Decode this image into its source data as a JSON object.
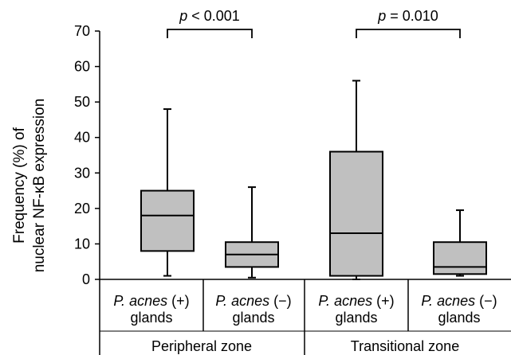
{
  "chart_data": {
    "type": "box",
    "ylabel_line1": "Frequency (%) of",
    "ylabel_line2": "nuclear NF-κB expression",
    "ylim": [
      0,
      70
    ],
    "yticks": [
      "0",
      "10",
      "20",
      "30",
      "40",
      "50",
      "60",
      "70"
    ],
    "ytick_values": [
      0,
      10,
      20,
      30,
      40,
      50,
      60,
      70
    ],
    "categories": [
      {
        "italic": "P. acnes",
        "suffix": " (+)",
        "line2": "glands"
      },
      {
        "italic": "P. acnes",
        "suffix": " (−)",
        "line2": "glands"
      },
      {
        "italic": "P. acnes",
        "suffix": " (+)",
        "line2": "glands"
      },
      {
        "italic": "P. acnes",
        "suffix": " (−)",
        "line2": "glands"
      }
    ],
    "groups": [
      "Peripheral zone",
      "Transitional zone"
    ],
    "boxes": [
      {
        "min": 1,
        "q1": 8,
        "median": 18,
        "q3": 25,
        "max": 48
      },
      {
        "min": 0.5,
        "q1": 3.5,
        "median": 7,
        "q3": 10.5,
        "max": 26
      },
      {
        "min": 0,
        "q1": 1,
        "median": 13,
        "q3": 36,
        "max": 56
      },
      {
        "min": 1,
        "q1": 1.5,
        "median": 3.5,
        "q3": 10.5,
        "max": 19.5
      }
    ],
    "comparisons": [
      {
        "p_label": "p",
        "p_rest": " < 0.001",
        "between": [
          0,
          1
        ]
      },
      {
        "p_label": "p",
        "p_rest": " = 0.010",
        "between": [
          2,
          3
        ]
      }
    ]
  }
}
